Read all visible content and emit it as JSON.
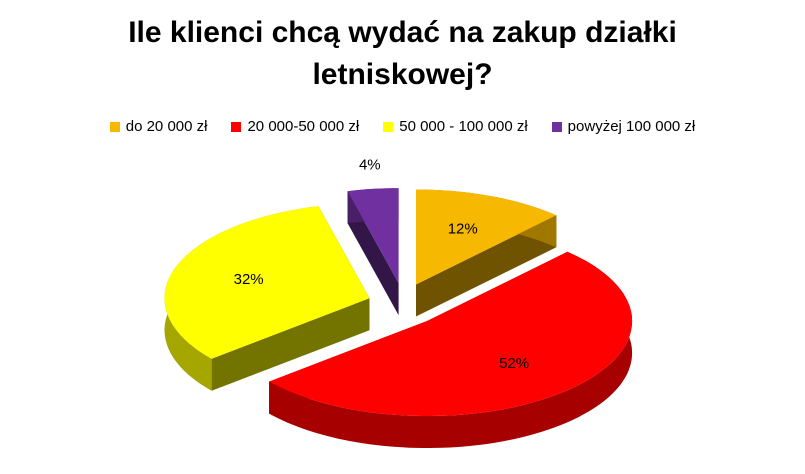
{
  "chart_data": {
    "type": "pie",
    "title": "Ile klienci chcą wydać na zakup działki letniskowej?",
    "categories": [
      "do 20 000 zł",
      "20 000-50 000 zł",
      "50 000 - 100 000 zł",
      "powyżej 100 000 zł"
    ],
    "values": [
      12,
      52,
      32,
      4
    ],
    "value_labels": [
      "12%",
      "52%",
      "32%",
      "4%"
    ],
    "colors": [
      "#f6b800",
      "#ff0000",
      "#ffff00",
      "#7030a0"
    ],
    "legend": "top"
  }
}
